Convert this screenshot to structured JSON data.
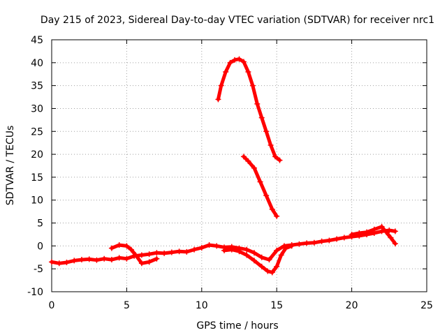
{
  "chart_data": {
    "type": "scatter",
    "title": "Day 215 of 2023, Sidereal Day-to-day VTEC variation (SDTVAR) for receiver nrc1",
    "xlabel": "GPS time / hours",
    "ylabel": "SDTVAR / TECUs",
    "xlim": [
      0,
      25
    ],
    "ylim": [
      -10,
      45
    ],
    "xticks": [
      "0",
      "5",
      "10",
      "15",
      "20",
      "25"
    ],
    "yticks": [
      "-10",
      "-5",
      "0",
      "5",
      "10",
      "15",
      "20",
      "25",
      "30",
      "35",
      "40",
      "45"
    ],
    "grid": true,
    "legend": "none",
    "color": "#ff0000",
    "series": [
      {
        "name": "trace-baseline",
        "x": [
          0.0,
          0.5,
          1.0,
          1.5,
          2.0,
          2.5,
          3.0,
          3.5,
          4.0,
          4.5,
          5.0,
          5.5,
          6.0,
          6.5,
          7.0,
          7.5,
          8.0,
          8.5,
          9.0,
          9.5,
          10.0,
          10.5,
          11.0,
          11.5,
          12.0,
          12.5,
          13.0,
          13.5,
          14.0,
          14.5,
          15.0,
          15.5,
          16.0,
          16.5,
          17.0,
          17.5,
          18.0,
          18.5,
          19.0,
          19.5,
          20.0,
          20.5,
          21.0,
          21.5,
          22.0,
          22.5,
          22.9
        ],
        "y": [
          -3.5,
          -3.8,
          -3.6,
          -3.2,
          -3.0,
          -2.9,
          -3.1,
          -2.8,
          -3.0,
          -2.6,
          -2.8,
          -2.2,
          -2.0,
          -1.8,
          -1.5,
          -1.6,
          -1.4,
          -1.2,
          -1.3,
          -0.8,
          -0.4,
          0.2,
          0.0,
          -0.3,
          -0.2,
          -0.5,
          -0.8,
          -1.5,
          -2.5,
          -3.0,
          -1.0,
          0.0,
          0.2,
          0.4,
          0.6,
          0.7,
          1.0,
          1.2,
          1.5,
          1.8,
          2.0,
          2.2,
          2.5,
          2.8,
          3.2,
          3.4,
          3.2
        ]
      },
      {
        "name": "trace-lower-arc",
        "x": [
          4.0,
          4.5,
          5.0,
          5.3,
          5.6,
          6.0,
          6.5,
          7.0
        ],
        "y": [
          -0.5,
          0.2,
          0.0,
          -0.8,
          -2.0,
          -3.8,
          -3.5,
          -2.8
        ]
      },
      {
        "name": "trace-dip",
        "x": [
          11.5,
          12.0,
          12.5,
          13.0,
          13.5,
          14.0,
          14.4,
          14.7,
          15.0,
          15.3,
          15.6,
          16.0
        ],
        "y": [
          -1.0,
          -0.8,
          -1.2,
          -2.0,
          -3.2,
          -4.5,
          -5.5,
          -5.8,
          -4.5,
          -2.0,
          -0.5,
          0.0
        ]
      },
      {
        "name": "trace-late-tail",
        "x": [
          20.0,
          20.5,
          21.0,
          21.5,
          22.0,
          22.3,
          22.6,
          22.9
        ],
        "y": [
          2.5,
          2.8,
          3.0,
          3.6,
          4.2,
          3.0,
          1.8,
          0.5
        ]
      },
      {
        "name": "trace-high-arc",
        "x": [
          11.1,
          11.3,
          11.6,
          11.9,
          12.2,
          12.5,
          12.8,
          13.1,
          13.4,
          13.7,
          14.0,
          14.3,
          14.6,
          14.9,
          15.2
        ],
        "y": [
          32.0,
          35.0,
          38.0,
          40.0,
          40.6,
          40.8,
          40.2,
          38.0,
          35.0,
          31.0,
          28.0,
          25.0,
          22.0,
          19.5,
          18.7
        ]
      },
      {
        "name": "trace-descending",
        "x": [
          12.8,
          13.1,
          13.5,
          13.9,
          14.3,
          14.7,
          15.0
        ],
        "y": [
          19.5,
          18.5,
          17.0,
          14.0,
          11.0,
          8.0,
          6.5
        ]
      }
    ]
  }
}
